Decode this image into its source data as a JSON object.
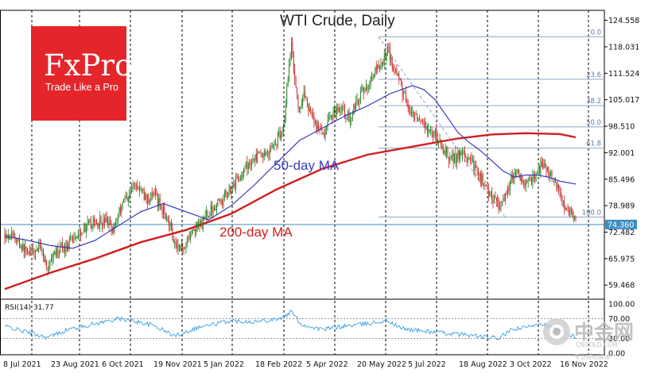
{
  "chart_data": {
    "type": "candlestick",
    "title": "WTI Crude, Daily",
    "y_range": [
      56.0,
      127.0
    ],
    "y_ticks": [
      "124.558",
      "118.031",
      "111.524",
      "105.017",
      "98.510",
      "92.001",
      "85.496",
      "78.989",
      "72.482",
      "65.975",
      "59.468"
    ],
    "x_ticks": [
      "8 Jul 2021",
      "23 Aug 2021",
      "6 Oct 2021",
      "19 Nov 2021",
      "5 Jan 2022",
      "18 Feb 2022",
      "5 Apr 2022",
      "20 May 2022",
      "5 Jul 2022",
      "18 Aug 2022",
      "3 Oct 2022",
      "16 Nov 2022"
    ],
    "current_price": "74.360",
    "current_price_value": 74.36,
    "price_path": [
      [
        0,
        72.0
      ],
      [
        8,
        71.5
      ],
      [
        16,
        68.5
      ],
      [
        24,
        67.5
      ],
      [
        32,
        68.8
      ],
      [
        38,
        63.5
      ],
      [
        44,
        66.5
      ],
      [
        50,
        68.5
      ],
      [
        56,
        69.2
      ],
      [
        62,
        71.5
      ],
      [
        70,
        73.5
      ],
      [
        80,
        75.0
      ],
      [
        90,
        75.0
      ],
      [
        96,
        73.5
      ],
      [
        104,
        80.0
      ],
      [
        110,
        82.0
      ],
      [
        115,
        84.5
      ],
      [
        120,
        82.5
      ],
      [
        126,
        80.5
      ],
      [
        132,
        82.0
      ],
      [
        138,
        78.5
      ],
      [
        144,
        76.0
      ],
      [
        150,
        70.0
      ],
      [
        156,
        68.5
      ],
      [
        162,
        71.0
      ],
      [
        168,
        73.5
      ],
      [
        174,
        74.5
      ],
      [
        180,
        77.5
      ],
      [
        186,
        79.0
      ],
      [
        192,
        80.5
      ],
      [
        198,
        83.0
      ],
      [
        204,
        85.0
      ],
      [
        210,
        87.0
      ],
      [
        216,
        89.5
      ],
      [
        222,
        91.0
      ],
      [
        228,
        91.5
      ],
      [
        234,
        92.5
      ],
      [
        240,
        95.0
      ],
      [
        246,
        98.5
      ],
      [
        250,
        110.0
      ],
      [
        253,
        120.0
      ],
      [
        256,
        110.0
      ],
      [
        260,
        102.0
      ],
      [
        264,
        107.0
      ],
      [
        268,
        102.0
      ],
      [
        272,
        100.5
      ],
      [
        276,
        98.5
      ],
      [
        280,
        96.0
      ],
      [
        286,
        100.0
      ],
      [
        292,
        103.0
      ],
      [
        298,
        102.5
      ],
      [
        304,
        100.5
      ],
      [
        310,
        104.0
      ],
      [
        316,
        107.0
      ],
      [
        322,
        109.5
      ],
      [
        328,
        112.0
      ],
      [
        334,
        114.5
      ],
      [
        338,
        118.0
      ],
      [
        342,
        114.0
      ],
      [
        346,
        111.5
      ],
      [
        350,
        108.0
      ],
      [
        354,
        105.0
      ],
      [
        358,
        101.0
      ],
      [
        362,
        100.5
      ],
      [
        368,
        98.5
      ],
      [
        374,
        97.0
      ],
      [
        380,
        96.5
      ],
      [
        386,
        93.0
      ],
      [
        392,
        91.0
      ],
      [
        398,
        90.5
      ],
      [
        404,
        92.0
      ],
      [
        410,
        90.0
      ],
      [
        416,
        88.0
      ],
      [
        420,
        86.0
      ],
      [
        424,
        84.5
      ],
      [
        428,
        82.0
      ],
      [
        432,
        80.5
      ],
      [
        436,
        79.0
      ],
      [
        440,
        80.5
      ],
      [
        444,
        83.0
      ],
      [
        448,
        86.0
      ],
      [
        452,
        87.5
      ],
      [
        456,
        85.0
      ],
      [
        460,
        83.5
      ],
      [
        464,
        85.5
      ],
      [
        468,
        86.5
      ],
      [
        472,
        88.0
      ],
      [
        476,
        89.0
      ],
      [
        480,
        87.0
      ],
      [
        484,
        85.5
      ],
      [
        488,
        83.5
      ],
      [
        492,
        80.0
      ],
      [
        496,
        78.5
      ],
      [
        500,
        76.5
      ],
      [
        504,
        74.36
      ]
    ],
    "ma50": [
      [
        0,
        71.5
      ],
      [
        20,
        70.5
      ],
      [
        40,
        69.2
      ],
      [
        60,
        68.5
      ],
      [
        80,
        70.5
      ],
      [
        100,
        74.0
      ],
      [
        120,
        77.5
      ],
      [
        140,
        79.5
      ],
      [
        160,
        77.5
      ],
      [
        180,
        75.5
      ],
      [
        200,
        79.0
      ],
      [
        220,
        84.0
      ],
      [
        240,
        89.5
      ],
      [
        260,
        95.0
      ],
      [
        280,
        98.0
      ],
      [
        300,
        101.0
      ],
      [
        320,
        103.5
      ],
      [
        340,
        106.5
      ],
      [
        360,
        108.5
      ],
      [
        370,
        107.5
      ],
      [
        380,
        105.0
      ],
      [
        390,
        101.0
      ],
      [
        400,
        97.0
      ],
      [
        410,
        94.5
      ],
      [
        420,
        92.5
      ],
      [
        430,
        90.0
      ],
      [
        440,
        87.5
      ],
      [
        450,
        86.0
      ],
      [
        460,
        86.5
      ],
      [
        470,
        86.5
      ],
      [
        480,
        86.0
      ],
      [
        490,
        85.0
      ],
      [
        504,
        84.3
      ]
    ],
    "ma200": [
      [
        0,
        58.5
      ],
      [
        40,
        62.5
      ],
      [
        80,
        66.0
      ],
      [
        120,
        70.0
      ],
      [
        160,
        73.0
      ],
      [
        200,
        77.0
      ],
      [
        240,
        83.0
      ],
      [
        280,
        88.0
      ],
      [
        320,
        91.5
      ],
      [
        360,
        93.5
      ],
      [
        400,
        95.5
      ],
      [
        430,
        96.5
      ],
      [
        460,
        96.8
      ],
      [
        490,
        96.6
      ],
      [
        504,
        95.8
      ]
    ],
    "ma50_label": "50-day MA",
    "ma200_label": "200-day MA",
    "fibonacci": {
      "high": 120.5,
      "low": 76.2,
      "levels": [
        {
          "label": "0.0",
          "ratio": 0.0
        },
        {
          "label": "23.6",
          "ratio": 0.236
        },
        {
          "label": "38.2",
          "ratio": 0.382
        },
        {
          "label": "50.0",
          "ratio": 0.5
        },
        {
          "label": "61.8",
          "ratio": 0.618
        },
        {
          "label": "100.0",
          "ratio": 1.0
        }
      ]
    },
    "rsi": {
      "label": "RSI(14) 31.77",
      "range": [
        0,
        100
      ],
      "ticks": [
        "100.00",
        "70.00",
        "30.00",
        "0.00"
      ],
      "levels": [
        70,
        30
      ],
      "points": [
        [
          0,
          55
        ],
        [
          16,
          45
        ],
        [
          38,
          32
        ],
        [
          56,
          48
        ],
        [
          80,
          60
        ],
        [
          100,
          70
        ],
        [
          115,
          65
        ],
        [
          132,
          56
        ],
        [
          150,
          35
        ],
        [
          170,
          52
        ],
        [
          200,
          66
        ],
        [
          222,
          64
        ],
        [
          246,
          72
        ],
        [
          253,
          85
        ],
        [
          262,
          58
        ],
        [
          280,
          48
        ],
        [
          300,
          55
        ],
        [
          320,
          60
        ],
        [
          338,
          66
        ],
        [
          350,
          50
        ],
        [
          370,
          45
        ],
        [
          392,
          40
        ],
        [
          410,
          37
        ],
        [
          424,
          32
        ],
        [
          436,
          30
        ],
        [
          448,
          48
        ],
        [
          460,
          52
        ],
        [
          472,
          62
        ],
        [
          480,
          55
        ],
        [
          496,
          40
        ],
        [
          504,
          31.77
        ]
      ]
    }
  },
  "logo": {
    "name": "FxPro",
    "tagline": "Trade Like a Pro"
  },
  "watermark": {
    "name": "中金网",
    "sub": "CNGOLD.COM",
    "tagline": "专业财经媒体"
  },
  "colors": {
    "candle_up": "#1a7f1a",
    "candle_down": "#cc1f1f",
    "ma50": "#2d2db8",
    "ma200": "#d21e1e",
    "fib": "#8aa8c8",
    "rsi": "#3aa0e0",
    "logo_bg": "#e4262b",
    "price_tag": "#3b8fc4"
  }
}
